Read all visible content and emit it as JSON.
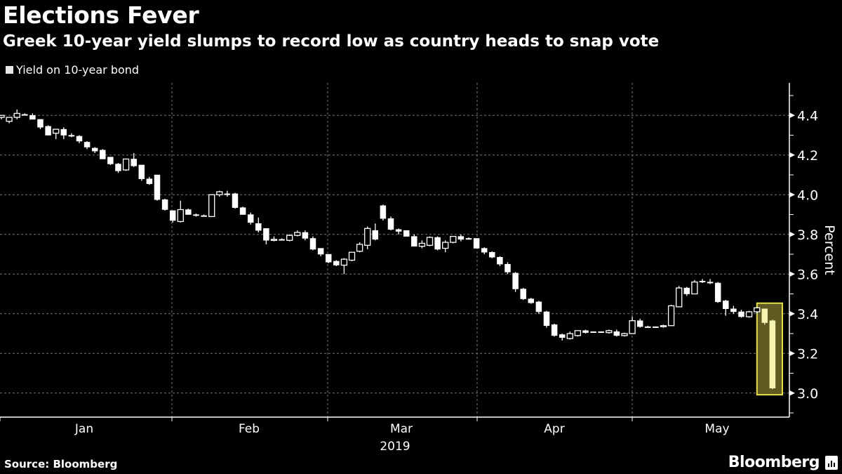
{
  "header": {
    "title": "Elections Fever",
    "subtitle": "Greek 10-year yield slumps to record low as country heads to snap vote"
  },
  "footer": {
    "source": "Source: Bloomberg",
    "logo": "Bloomberg"
  },
  "colors": {
    "background": "#000000",
    "candle": "#ffffff",
    "highlight_candle": "#f5f3b0",
    "highlight_fill": "#5e5a22",
    "highlight_stroke": "#e8e04a",
    "grid": "#777777"
  },
  "chart_data": {
    "type": "candlestick",
    "legend": [
      "Yield on 10-year bond"
    ],
    "legend_placement": "top-left",
    "ylabel": "Percent",
    "ylim": [
      2.88,
      4.56
    ],
    "y_ticks": [
      "3.0",
      "3.2",
      "3.4",
      "3.6",
      "3.8",
      "4.0",
      "4.2",
      "4.4"
    ],
    "x_ticks": [
      "Jan",
      "Feb",
      "Mar",
      "Apr",
      "May"
    ],
    "x_year_label": "2019",
    "grid": true,
    "highlight_last_n": 2,
    "candles_ohlc": [
      [
        4.39,
        4.4,
        4.38,
        4.4
      ],
      [
        4.37,
        4.39,
        4.36,
        4.39
      ],
      [
        4.39,
        4.43,
        4.38,
        4.41
      ],
      [
        4.405,
        4.41,
        4.4,
        4.405
      ],
      [
        4.4,
        4.41,
        4.38,
        4.38
      ],
      [
        4.38,
        4.38,
        4.33,
        4.34
      ],
      [
        4.345,
        4.35,
        4.3,
        4.3
      ],
      [
        4.31,
        4.33,
        4.28,
        4.33
      ],
      [
        4.33,
        4.34,
        4.28,
        4.3
      ],
      [
        4.3,
        4.31,
        4.29,
        4.295
      ],
      [
        4.295,
        4.3,
        4.26,
        4.27
      ],
      [
        4.265,
        4.27,
        4.23,
        4.24
      ],
      [
        4.235,
        4.24,
        4.21,
        4.22
      ],
      [
        4.225,
        4.23,
        4.18,
        4.18
      ],
      [
        4.19,
        4.19,
        4.15,
        4.155
      ],
      [
        4.155,
        4.16,
        4.11,
        4.12
      ],
      [
        4.125,
        4.18,
        4.12,
        4.18
      ],
      [
        4.18,
        4.21,
        4.14,
        4.145
      ],
      [
        4.15,
        4.15,
        4.07,
        4.08
      ],
      [
        4.08,
        4.09,
        4.05,
        4.055
      ],
      [
        4.1,
        4.1,
        3.97,
        3.975
      ],
      [
        3.975,
        3.98,
        3.92,
        3.925
      ],
      [
        3.92,
        3.92,
        3.86,
        3.87
      ],
      [
        3.865,
        3.97,
        3.86,
        3.925
      ],
      [
        3.925,
        3.93,
        3.9,
        3.9
      ],
      [
        3.9,
        3.905,
        3.89,
        3.895
      ],
      [
        3.895,
        3.9,
        3.89,
        3.895
      ],
      [
        3.89,
        4.0,
        3.89,
        4.0
      ],
      [
        4.0,
        4.02,
        3.99,
        4.015
      ],
      [
        4.005,
        4.02,
        3.99,
        4.005
      ],
      [
        4.005,
        4.01,
        3.93,
        3.935
      ],
      [
        3.935,
        3.94,
        3.9,
        3.9
      ],
      [
        3.9,
        3.91,
        3.85,
        3.86
      ],
      [
        3.855,
        3.885,
        3.81,
        3.82
      ],
      [
        3.83,
        3.83,
        3.75,
        3.77
      ],
      [
        3.77,
        3.79,
        3.765,
        3.775
      ],
      [
        3.775,
        3.78,
        3.77,
        3.775
      ],
      [
        3.77,
        3.8,
        3.765,
        3.795
      ],
      [
        3.795,
        3.82,
        3.79,
        3.81
      ],
      [
        3.81,
        3.82,
        3.77,
        3.78
      ],
      [
        3.78,
        3.79,
        3.72,
        3.725
      ],
      [
        3.73,
        3.73,
        3.69,
        3.7
      ],
      [
        3.7,
        3.7,
        3.655,
        3.66
      ],
      [
        3.665,
        3.67,
        3.64,
        3.645
      ],
      [
        3.645,
        3.68,
        3.6,
        3.675
      ],
      [
        3.67,
        3.71,
        3.665,
        3.71
      ],
      [
        3.715,
        3.76,
        3.71,
        3.75
      ],
      [
        3.745,
        3.84,
        3.725,
        3.83
      ],
      [
        3.82,
        3.855,
        3.77,
        3.775
      ],
      [
        3.945,
        3.95,
        3.87,
        3.88
      ],
      [
        3.88,
        3.89,
        3.82,
        3.825
      ],
      [
        3.825,
        3.83,
        3.8,
        3.815
      ],
      [
        3.82,
        3.82,
        3.79,
        3.79
      ],
      [
        3.79,
        3.8,
        3.74,
        3.74
      ],
      [
        3.74,
        3.77,
        3.73,
        3.755
      ],
      [
        3.745,
        3.79,
        3.74,
        3.785
      ],
      [
        3.785,
        3.79,
        3.72,
        3.725
      ],
      [
        3.73,
        3.77,
        3.71,
        3.76
      ],
      [
        3.76,
        3.79,
        3.755,
        3.79
      ],
      [
        3.79,
        3.8,
        3.765,
        3.775
      ],
      [
        3.78,
        3.785,
        3.775,
        3.78
      ],
      [
        3.78,
        3.78,
        3.73,
        3.73
      ],
      [
        3.73,
        3.735,
        3.7,
        3.71
      ],
      [
        3.71,
        3.715,
        3.68,
        3.685
      ],
      [
        3.685,
        3.69,
        3.64,
        3.65
      ],
      [
        3.65,
        3.66,
        3.6,
        3.61
      ],
      [
        3.605,
        3.61,
        3.51,
        3.525
      ],
      [
        3.525,
        3.53,
        3.47,
        3.475
      ],
      [
        3.475,
        3.48,
        3.45,
        3.455
      ],
      [
        3.46,
        3.465,
        3.4,
        3.41
      ],
      [
        3.41,
        3.415,
        3.33,
        3.34
      ],
      [
        3.345,
        3.35,
        3.285,
        3.29
      ],
      [
        3.295,
        3.3,
        3.265,
        3.28
      ],
      [
        3.275,
        3.31,
        3.27,
        3.3
      ],
      [
        3.29,
        3.315,
        3.285,
        3.315
      ],
      [
        3.315,
        3.32,
        3.3,
        3.305
      ],
      [
        3.31,
        3.31,
        3.31,
        3.31
      ],
      [
        3.31,
        3.31,
        3.31,
        3.31
      ],
      [
        3.305,
        3.32,
        3.3,
        3.315
      ],
      [
        3.31,
        3.32,
        3.285,
        3.29
      ],
      [
        3.29,
        3.305,
        3.285,
        3.3
      ],
      [
        3.3,
        3.385,
        3.3,
        3.365
      ],
      [
        3.365,
        3.375,
        3.33,
        3.335
      ],
      [
        3.335,
        3.34,
        3.33,
        3.335
      ],
      [
        3.335,
        3.335,
        3.335,
        3.335
      ],
      [
        3.335,
        3.345,
        3.33,
        3.34
      ],
      [
        3.34,
        3.445,
        3.34,
        3.44
      ],
      [
        3.435,
        3.54,
        3.435,
        3.53
      ],
      [
        3.53,
        3.535,
        3.49,
        3.5
      ],
      [
        3.5,
        3.57,
        3.5,
        3.56
      ],
      [
        3.565,
        3.575,
        3.555,
        3.565
      ],
      [
        3.56,
        3.575,
        3.55,
        3.56
      ],
      [
        3.555,
        3.56,
        3.455,
        3.46
      ],
      [
        3.465,
        3.47,
        3.39,
        3.425
      ],
      [
        3.425,
        3.44,
        3.4,
        3.41
      ],
      [
        3.41,
        3.42,
        3.38,
        3.385
      ],
      [
        3.385,
        3.415,
        3.38,
        3.41
      ],
      [
        3.41,
        3.43,
        3.4,
        3.43
      ],
      [
        3.425,
        3.425,
        3.345,
        3.355
      ],
      [
        3.365,
        3.37,
        3.02,
        3.025
      ]
    ]
  }
}
